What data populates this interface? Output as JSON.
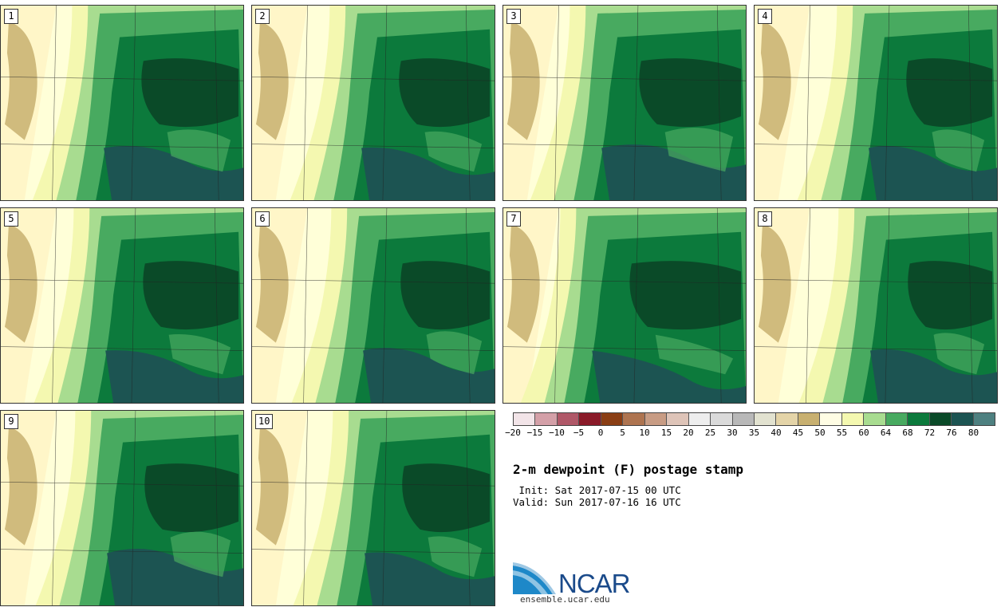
{
  "title": "2-m dewpoint (F) postage stamp",
  "init_line": " Init: Sat 2017-07-15 00 UTC",
  "valid_line": "Valid: Sun 2017-07-16 16 UTC",
  "logo_text": "NCAR",
  "site": "ensemble.ucar.edu",
  "panels": [
    {
      "label": "1"
    },
    {
      "label": "2"
    },
    {
      "label": "3"
    },
    {
      "label": "4"
    },
    {
      "label": "5"
    },
    {
      "label": "6"
    },
    {
      "label": "7"
    },
    {
      "label": "8"
    },
    {
      "label": "9"
    },
    {
      "label": "10"
    }
  ],
  "colorbar": {
    "ticks": [
      "−20",
      "−15",
      "−10",
      "−5",
      "0",
      "5",
      "10",
      "15",
      "20",
      "25",
      "30",
      "35",
      "40",
      "45",
      "50",
      "55",
      "60",
      "64",
      "68",
      "72",
      "76",
      "80"
    ],
    "colors": [
      "#f2e4e8",
      "#d4a0a8",
      "#b05868",
      "#8a1a28",
      "#8a3e14",
      "#ae7450",
      "#c89c84",
      "#dec4b8",
      "#eeeeee",
      "#dadada",
      "#b8b8b8",
      "#e2e2d0",
      "#e4d4a8",
      "#c8b070",
      "#fffde4",
      "#f4f8b0",
      "#a8dc90",
      "#48aa60",
      "#0c7a3c",
      "#0a4a28",
      "#1c5452",
      "#4e8080"
    ]
  },
  "colors": {
    "dry": "#ffffd8",
    "light": "#f4f8b0",
    "green1": "#a8dc90",
    "green2": "#48aa60",
    "green3": "#0c7a3c",
    "green4": "#0a4a28",
    "teal": "#1c5452",
    "tan": "#c8b070"
  }
}
